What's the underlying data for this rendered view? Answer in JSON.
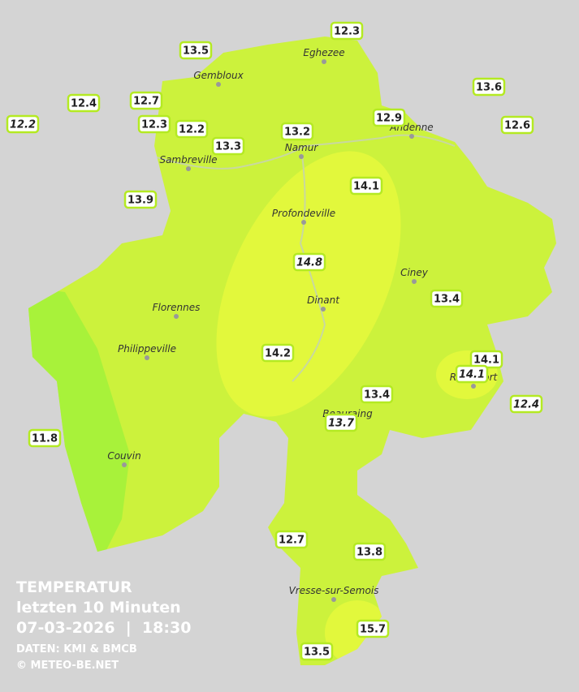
{
  "title": "TEMPERATUR",
  "subtitle": "letzten 10 Minuten",
  "datetime": "07-03-2026  |  18:30",
  "source": "DATEN: KMI & BMCB",
  "copyright": "© METEO-BE.NET",
  "cities": [
    "Eghezee",
    "Gembloux",
    "Andenne",
    "Namur",
    "Sambreville",
    "Profondeville",
    "Ciney",
    "Florennes",
    "Dinant",
    "Philippeville",
    "Rochefort",
    "Beauraing",
    "Couvin",
    "Vresse-sur-Semois"
  ],
  "stations": [
    {
      "value": 12.3,
      "italic": false
    },
    {
      "value": 13.5,
      "italic": false
    },
    {
      "value": 13.6,
      "italic": false
    },
    {
      "value": 12.4,
      "italic": false
    },
    {
      "value": 12.7,
      "italic": false
    },
    {
      "value": 12.2,
      "italic": true
    },
    {
      "value": 12.3,
      "italic": false
    },
    {
      "value": 12.2,
      "italic": false
    },
    {
      "value": 12.9,
      "italic": false
    },
    {
      "value": 12.6,
      "italic": false
    },
    {
      "value": 13.2,
      "italic": false
    },
    {
      "value": 13.3,
      "italic": false
    },
    {
      "value": 13.9,
      "italic": false
    },
    {
      "value": 14.1,
      "italic": false
    },
    {
      "value": 14.8,
      "italic": true
    },
    {
      "value": 13.4,
      "italic": false
    },
    {
      "value": 14.2,
      "italic": false
    },
    {
      "value": 14.1,
      "italic": false
    },
    {
      "value": 14.1,
      "italic": true
    },
    {
      "value": 13.4,
      "italic": false
    },
    {
      "value": 12.4,
      "italic": true
    },
    {
      "value": 13.7,
      "italic": true
    },
    {
      "value": 11.8,
      "italic": false
    },
    {
      "value": 12.7,
      "italic": false
    },
    {
      "value": 13.8,
      "italic": false
    },
    {
      "value": 15.7,
      "italic": false
    },
    {
      "value": 13.5,
      "italic": false
    }
  ]
}
